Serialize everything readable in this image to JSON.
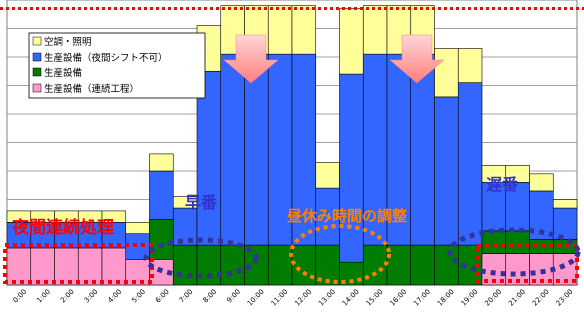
{
  "chart_data": {
    "type": "bar",
    "stacked": true,
    "title": "",
    "xlabel": "",
    "ylabel": "",
    "ylim": [
      0,
      10
    ],
    "grid": true,
    "legend_position": "top-left",
    "categories": [
      "0:00",
      "1:00",
      "2:00",
      "3:00",
      "4:00",
      "5:00",
      "6:00",
      "7:00",
      "8:00",
      "9:00",
      "10:00",
      "11:00",
      "12:00",
      "13:00",
      "14:00",
      "15:00",
      "16:00",
      "17:00",
      "18:00",
      "19:00",
      "20:00",
      "21:00",
      "22:00",
      "23:00"
    ],
    "series": [
      {
        "name": "生産設備（連続工程）",
        "color": "#ff99cc",
        "values": [
          1.3,
          1.3,
          1.3,
          1.3,
          1.3,
          0.9,
          0.9,
          0,
          0,
          0,
          0,
          0,
          0,
          0,
          0,
          0,
          0,
          0,
          0,
          0,
          1.1,
          1.1,
          1.1,
          1.1
        ]
      },
      {
        "name": "生産設備",
        "color": "#007d00",
        "values": [
          0,
          0,
          0,
          0,
          0,
          0,
          1.4,
          1.4,
          1.4,
          1.4,
          1.4,
          1.4,
          1.4,
          1.4,
          0.8,
          1.4,
          1.4,
          1.4,
          1.4,
          1.4,
          0.8,
          0.8,
          0.5,
          0.5
        ]
      },
      {
        "name": "生産設備（夜間シフト不可）",
        "color": "#3366ff",
        "values": [
          0.9,
          0.9,
          0.9,
          0.9,
          0.9,
          0.9,
          1.7,
          1.3,
          6.1,
          6.7,
          6.7,
          6.7,
          6.7,
          2.0,
          6.6,
          6.7,
          6.7,
          6.7,
          5.2,
          5.7,
          1.7,
          1.7,
          1.7,
          1.1
        ]
      },
      {
        "name": "空調・照明",
        "color": "#ffff99",
        "values": [
          0.4,
          0.4,
          0.4,
          0.4,
          0.4,
          0.4,
          0.6,
          0.4,
          1.6,
          1.7,
          1.7,
          1.7,
          1.7,
          0.9,
          2.3,
          1.7,
          1.7,
          1.7,
          1.7,
          1.2,
          0.6,
          0.6,
          0.6,
          0.3
        ]
      }
    ],
    "limit_line": {
      "value": 9.7,
      "color": "#ff0000",
      "style": "dotted"
    },
    "annotations": [
      {
        "text": "夜間連続処理",
        "color": "#ff0000",
        "box_color": "#ff0000",
        "box_style": "dotted"
      },
      {
        "text": "早番",
        "color": "#3333cc",
        "box_color": "#333399",
        "box_style": "dotted-ellipse"
      },
      {
        "text": "昼休み時間の調整",
        "color": "#ff8000",
        "box_color": "#ff8000",
        "box_style": "dotted-ellipse"
      },
      {
        "text": "遅番",
        "color": "#3333cc",
        "box_color": "#333399",
        "box_style": "dotted-ellipse"
      }
    ],
    "shift_arrows": {
      "color": "#ff9999",
      "count": 2
    }
  }
}
